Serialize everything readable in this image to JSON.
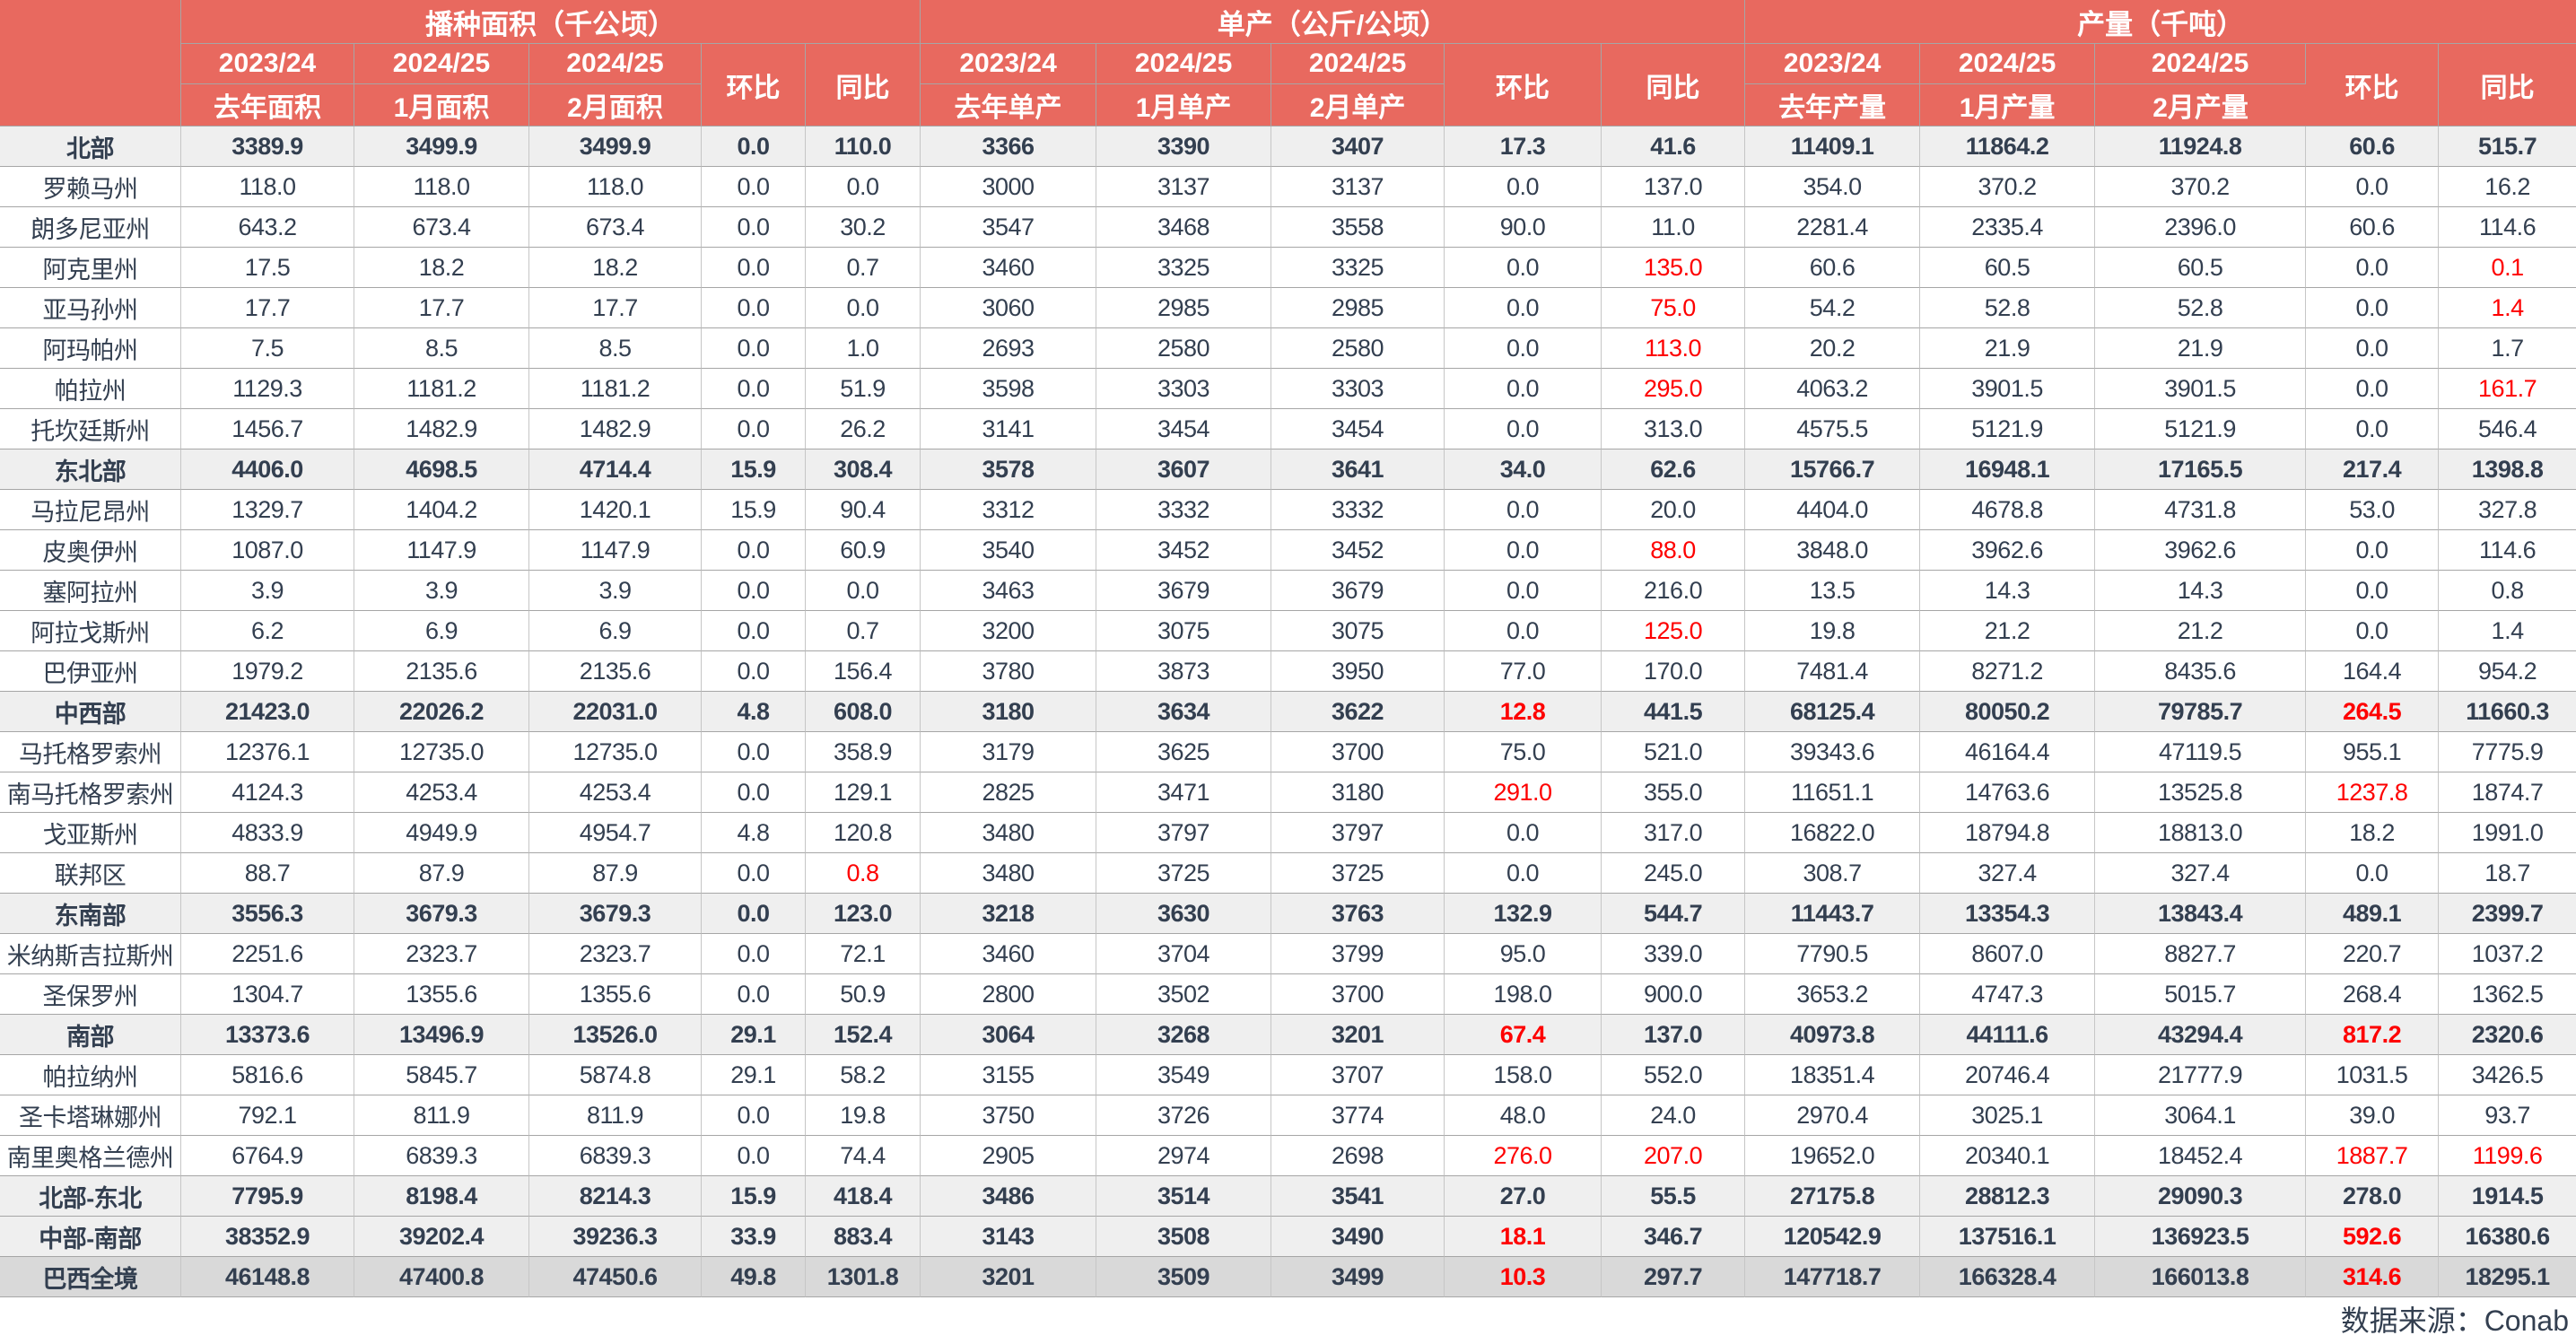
{
  "chart_data": {
    "type": "table",
    "col_groups": [
      {
        "title": "播种面积（千公顷）",
        "years": [
          "2023/24",
          "2024/25",
          "2024/25"
        ],
        "subs": [
          "去年面积",
          "1月面积",
          "2月面积"
        ],
        "mom_label": "环比",
        "yoy_label": "同比"
      },
      {
        "title": "单产（公斤/公顷）",
        "years": [
          "2023/24",
          "2024/25",
          "2024/25"
        ],
        "subs": [
          "去年单产",
          "1月单产",
          "2月单产"
        ],
        "mom_label": "环比",
        "yoy_label": "同比"
      },
      {
        "title": "产量（千吨）",
        "years": [
          "2023/24",
          "2024/25",
          "2024/25"
        ],
        "subs": [
          "去年产量",
          "1月产量",
          "2月产量"
        ],
        "mom_label": "环比",
        "yoy_label": "同比"
      }
    ],
    "rows": [
      {
        "label": "北部",
        "type": "section",
        "values": [
          "3389.9",
          "3499.9",
          "3499.9",
          "0.0",
          "110.0",
          "3366",
          "3390",
          "3407",
          "17.3",
          "41.6",
          "11409.1",
          "11864.2",
          "11924.8",
          "60.6",
          "515.7"
        ],
        "red": []
      },
      {
        "label": "罗赖马州",
        "type": "state",
        "values": [
          "118.0",
          "118.0",
          "118.0",
          "0.0",
          "0.0",
          "3000",
          "3137",
          "3137",
          "0.0",
          "137.0",
          "354.0",
          "370.2",
          "370.2",
          "0.0",
          "16.2"
        ],
        "red": []
      },
      {
        "label": "朗多尼亚州",
        "type": "state",
        "values": [
          "643.2",
          "673.4",
          "673.4",
          "0.0",
          "30.2",
          "3547",
          "3468",
          "3558",
          "90.0",
          "11.0",
          "2281.4",
          "2335.4",
          "2396.0",
          "60.6",
          "114.6"
        ],
        "red": []
      },
      {
        "label": "阿克里州",
        "type": "state",
        "values": [
          "17.5",
          "18.2",
          "18.2",
          "0.0",
          "0.7",
          "3460",
          "3325",
          "3325",
          "0.0",
          "135.0",
          "60.6",
          "60.5",
          "60.5",
          "0.0",
          "0.1"
        ],
        "red": [
          9,
          14
        ]
      },
      {
        "label": "亚马孙州",
        "type": "state",
        "values": [
          "17.7",
          "17.7",
          "17.7",
          "0.0",
          "0.0",
          "3060",
          "2985",
          "2985",
          "0.0",
          "75.0",
          "54.2",
          "52.8",
          "52.8",
          "0.0",
          "1.4"
        ],
        "red": [
          9,
          14
        ]
      },
      {
        "label": "阿玛帕州",
        "type": "state",
        "values": [
          "7.5",
          "8.5",
          "8.5",
          "0.0",
          "1.0",
          "2693",
          "2580",
          "2580",
          "0.0",
          "113.0",
          "20.2",
          "21.9",
          "21.9",
          "0.0",
          "1.7"
        ],
        "red": [
          9
        ]
      },
      {
        "label": "帕拉州",
        "type": "state",
        "values": [
          "1129.3",
          "1181.2",
          "1181.2",
          "0.0",
          "51.9",
          "3598",
          "3303",
          "3303",
          "0.0",
          "295.0",
          "4063.2",
          "3901.5",
          "3901.5",
          "0.0",
          "161.7"
        ],
        "red": [
          9,
          14
        ]
      },
      {
        "label": "托坎廷斯州",
        "type": "state",
        "values": [
          "1456.7",
          "1482.9",
          "1482.9",
          "0.0",
          "26.2",
          "3141",
          "3454",
          "3454",
          "0.0",
          "313.0",
          "4575.5",
          "5121.9",
          "5121.9",
          "0.0",
          "546.4"
        ],
        "red": []
      },
      {
        "label": "东北部",
        "type": "section",
        "values": [
          "4406.0",
          "4698.5",
          "4714.4",
          "15.9",
          "308.4",
          "3578",
          "3607",
          "3641",
          "34.0",
          "62.6",
          "15766.7",
          "16948.1",
          "17165.5",
          "217.4",
          "1398.8"
        ],
        "red": []
      },
      {
        "label": "马拉尼昂州",
        "type": "state",
        "values": [
          "1329.7",
          "1404.2",
          "1420.1",
          "15.9",
          "90.4",
          "3312",
          "3332",
          "3332",
          "0.0",
          "20.0",
          "4404.0",
          "4678.8",
          "4731.8",
          "53.0",
          "327.8"
        ],
        "red": []
      },
      {
        "label": "皮奥伊州",
        "type": "state",
        "values": [
          "1087.0",
          "1147.9",
          "1147.9",
          "0.0",
          "60.9",
          "3540",
          "3452",
          "3452",
          "0.0",
          "88.0",
          "3848.0",
          "3962.6",
          "3962.6",
          "0.0",
          "114.6"
        ],
        "red": [
          9
        ]
      },
      {
        "label": "塞阿拉州",
        "type": "state",
        "values": [
          "3.9",
          "3.9",
          "3.9",
          "0.0",
          "0.0",
          "3463",
          "3679",
          "3679",
          "0.0",
          "216.0",
          "13.5",
          "14.3",
          "14.3",
          "0.0",
          "0.8"
        ],
        "red": []
      },
      {
        "label": "阿拉戈斯州",
        "type": "state",
        "values": [
          "6.2",
          "6.9",
          "6.9",
          "0.0",
          "0.7",
          "3200",
          "3075",
          "3075",
          "0.0",
          "125.0",
          "19.8",
          "21.2",
          "21.2",
          "0.0",
          "1.4"
        ],
        "red": [
          9
        ]
      },
      {
        "label": "巴伊亚州",
        "type": "state",
        "values": [
          "1979.2",
          "2135.6",
          "2135.6",
          "0.0",
          "156.4",
          "3780",
          "3873",
          "3950",
          "77.0",
          "170.0",
          "7481.4",
          "8271.2",
          "8435.6",
          "164.4",
          "954.2"
        ],
        "red": []
      },
      {
        "label": "中西部",
        "type": "section",
        "values": [
          "21423.0",
          "22026.2",
          "22031.0",
          "4.8",
          "608.0",
          "3180",
          "3634",
          "3622",
          "12.8",
          "441.5",
          "68125.4",
          "80050.2",
          "79785.7",
          "264.5",
          "11660.3"
        ],
        "red": [
          8,
          13
        ]
      },
      {
        "label": "马托格罗索州",
        "type": "state",
        "values": [
          "12376.1",
          "12735.0",
          "12735.0",
          "0.0",
          "358.9",
          "3179",
          "3625",
          "3700",
          "75.0",
          "521.0",
          "39343.6",
          "46164.4",
          "47119.5",
          "955.1",
          "7775.9"
        ],
        "red": []
      },
      {
        "label": "南马托格罗索州",
        "type": "state",
        "values": [
          "4124.3",
          "4253.4",
          "4253.4",
          "0.0",
          "129.1",
          "2825",
          "3471",
          "3180",
          "291.0",
          "355.0",
          "11651.1",
          "14763.6",
          "13525.8",
          "1237.8",
          "1874.7"
        ],
        "red": [
          8,
          13
        ]
      },
      {
        "label": "戈亚斯州",
        "type": "state",
        "values": [
          "4833.9",
          "4949.9",
          "4954.7",
          "4.8",
          "120.8",
          "3480",
          "3797",
          "3797",
          "0.0",
          "317.0",
          "16822.0",
          "18794.8",
          "18813.0",
          "18.2",
          "1991.0"
        ],
        "red": []
      },
      {
        "label": "联邦区",
        "type": "state",
        "values": [
          "88.7",
          "87.9",
          "87.9",
          "0.0",
          "0.8",
          "3480",
          "3725",
          "3725",
          "0.0",
          "245.0",
          "308.7",
          "327.4",
          "327.4",
          "0.0",
          "18.7"
        ],
        "red": [
          4
        ]
      },
      {
        "label": "东南部",
        "type": "section",
        "values": [
          "3556.3",
          "3679.3",
          "3679.3",
          "0.0",
          "123.0",
          "3218",
          "3630",
          "3763",
          "132.9",
          "544.7",
          "11443.7",
          "13354.3",
          "13843.4",
          "489.1",
          "2399.7"
        ],
        "red": []
      },
      {
        "label": "米纳斯吉拉斯州",
        "type": "state",
        "values": [
          "2251.6",
          "2323.7",
          "2323.7",
          "0.0",
          "72.1",
          "3460",
          "3704",
          "3799",
          "95.0",
          "339.0",
          "7790.5",
          "8607.0",
          "8827.7",
          "220.7",
          "1037.2"
        ],
        "red": []
      },
      {
        "label": "圣保罗州",
        "type": "state",
        "values": [
          "1304.7",
          "1355.6",
          "1355.6",
          "0.0",
          "50.9",
          "2800",
          "3502",
          "3700",
          "198.0",
          "900.0",
          "3653.2",
          "4747.3",
          "5015.7",
          "268.4",
          "1362.5"
        ],
        "red": []
      },
      {
        "label": "南部",
        "type": "section",
        "values": [
          "13373.6",
          "13496.9",
          "13526.0",
          "29.1",
          "152.4",
          "3064",
          "3268",
          "3201",
          "67.4",
          "137.0",
          "40973.8",
          "44111.6",
          "43294.4",
          "817.2",
          "2320.6"
        ],
        "red": [
          8,
          13
        ]
      },
      {
        "label": "帕拉纳州",
        "type": "state",
        "values": [
          "5816.6",
          "5845.7",
          "5874.8",
          "29.1",
          "58.2",
          "3155",
          "3549",
          "3707",
          "158.0",
          "552.0",
          "18351.4",
          "20746.4",
          "21777.9",
          "1031.5",
          "3426.5"
        ],
        "red": []
      },
      {
        "label": "圣卡塔琳娜州",
        "type": "state",
        "values": [
          "792.1",
          "811.9",
          "811.9",
          "0.0",
          "19.8",
          "3750",
          "3726",
          "3774",
          "48.0",
          "24.0",
          "2970.4",
          "3025.1",
          "3064.1",
          "39.0",
          "93.7"
        ],
        "red": []
      },
      {
        "label": "南里奥格兰德州",
        "type": "state",
        "values": [
          "6764.9",
          "6839.3",
          "6839.3",
          "0.0",
          "74.4",
          "2905",
          "2974",
          "2698",
          "276.0",
          "207.0",
          "19652.0",
          "20340.1",
          "18452.4",
          "1887.7",
          "1199.6"
        ],
        "red": [
          8,
          9,
          13,
          14
        ]
      },
      {
        "label": "北部-东北",
        "type": "section",
        "values": [
          "7795.9",
          "8198.4",
          "8214.3",
          "15.9",
          "418.4",
          "3486",
          "3514",
          "3541",
          "27.0",
          "55.5",
          "27175.8",
          "28812.3",
          "29090.3",
          "278.0",
          "1914.5"
        ],
        "red": []
      },
      {
        "label": "中部-南部",
        "type": "section",
        "values": [
          "38352.9",
          "39202.4",
          "39236.3",
          "33.9",
          "883.4",
          "3143",
          "3508",
          "3490",
          "18.1",
          "346.7",
          "120542.9",
          "137516.1",
          "136923.5",
          "592.6",
          "16380.6"
        ],
        "red": [
          8,
          13
        ]
      },
      {
        "label": "巴西全境",
        "type": "total",
        "values": [
          "46148.8",
          "47400.8",
          "47450.6",
          "49.8",
          "1301.8",
          "3201",
          "3509",
          "3499",
          "10.3",
          "297.7",
          "147718.7",
          "166328.4",
          "166013.8",
          "314.6",
          "18295.1"
        ],
        "red": [
          8,
          13
        ]
      }
    ],
    "source_note": "数据来源：Conab",
    "colors": {
      "header_bg": "#e8695f",
      "text": "#333f50",
      "negative": "#fe0000",
      "section_row_bg": "#efefef",
      "total_row_bg": "#d9d9d9"
    }
  }
}
